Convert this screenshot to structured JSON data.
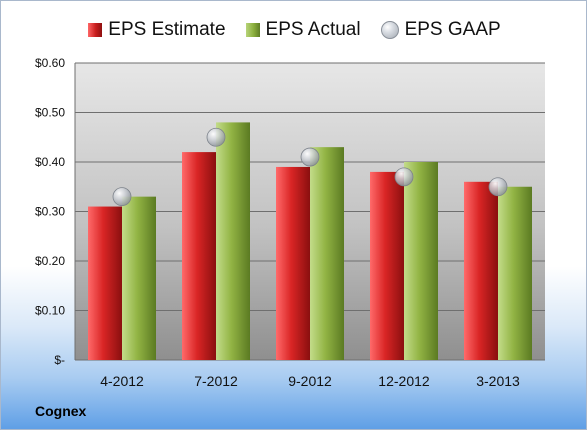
{
  "company": "Cognex",
  "legend": [
    {
      "label": "EPS Estimate",
      "color": "#c81e1e",
      "icon": "red-square"
    },
    {
      "label": "EPS Actual",
      "color": "#8aae3c",
      "icon": "green-square"
    },
    {
      "label": "EPS GAAP",
      "color": "#b0b4ba",
      "icon": "gray-bubble"
    }
  ],
  "chart_data": {
    "type": "bar",
    "categories": [
      "4-2012",
      "7-2012",
      "9-2012",
      "12-2012",
      "3-2013"
    ],
    "series": [
      {
        "name": "EPS Estimate",
        "type": "bar",
        "color": "#c81e1e",
        "values": [
          0.31,
          0.42,
          0.39,
          0.38,
          0.36
        ]
      },
      {
        "name": "EPS Actual",
        "type": "bar",
        "color": "#8aae3c",
        "values": [
          0.33,
          0.48,
          0.43,
          0.4,
          0.35
        ]
      },
      {
        "name": "EPS GAAP",
        "type": "bubble",
        "color": "#b0b4ba",
        "values": [
          0.33,
          0.45,
          0.41,
          0.37,
          0.35
        ]
      }
    ],
    "ylim": [
      0,
      0.6
    ],
    "yticks": [
      0,
      0.1,
      0.2,
      0.3,
      0.4,
      0.5,
      0.6
    ],
    "ytick_labels": [
      "$-",
      "$0.10",
      "$0.20",
      "$0.30",
      "$0.40",
      "$0.50",
      "$0.60"
    ],
    "grid": true,
    "legend_position": "top"
  }
}
